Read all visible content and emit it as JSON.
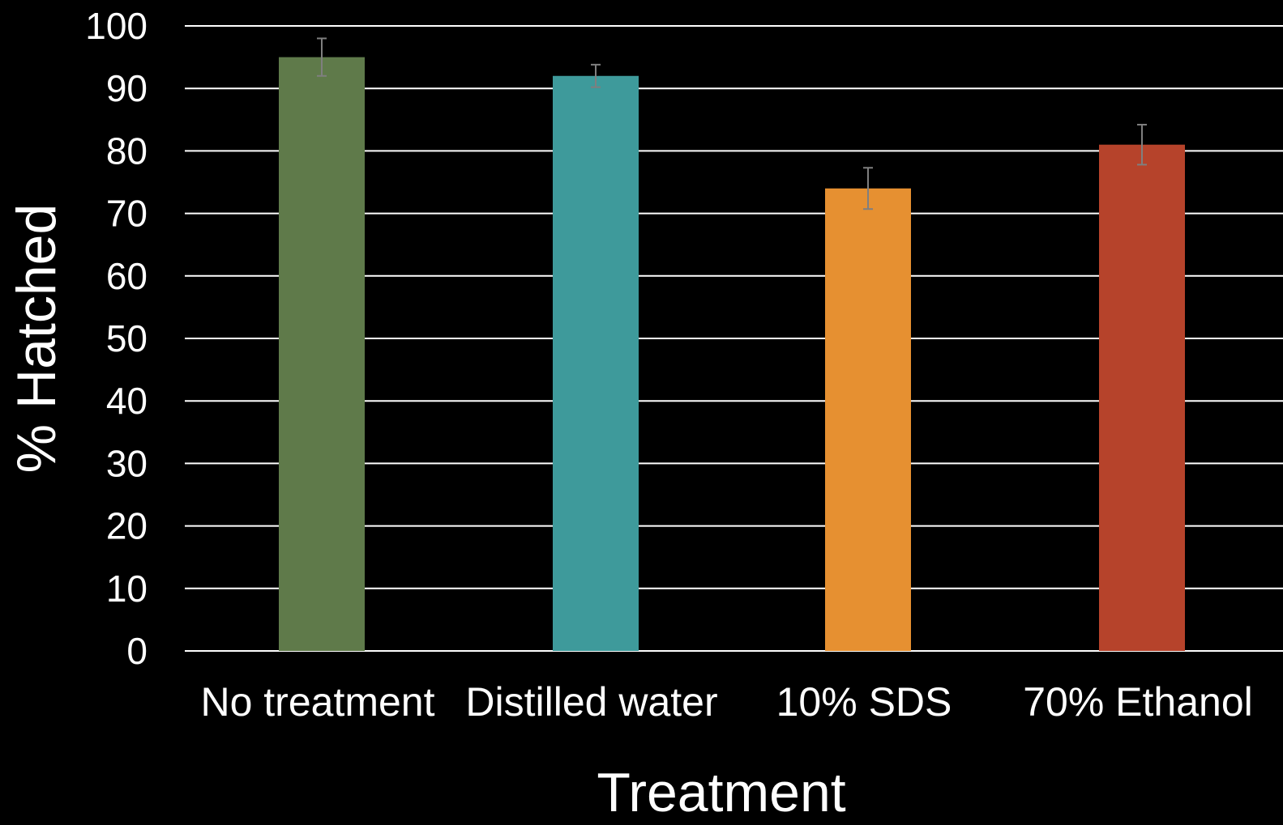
{
  "chart_data": {
    "type": "bar",
    "title": "",
    "xlabel": "Treatment",
    "ylabel": "% Hatched",
    "categories": [
      "No treatment",
      "Distilled water",
      "10% SDS",
      "70% Ethanol"
    ],
    "values": [
      95,
      92,
      74,
      81
    ],
    "error_bars": [
      3,
      1.8,
      3.3,
      3.2
    ],
    "colors": [
      "#5f7a4a",
      "#3e9a9b",
      "#e69031",
      "#b6432b"
    ],
    "ylim": [
      0,
      100
    ],
    "yticks": [
      0,
      10,
      20,
      30,
      40,
      50,
      60,
      70,
      80,
      90,
      100
    ],
    "grid": true,
    "legend": "none",
    "background": "#000000",
    "text_color": "#ffffff",
    "error_bar_color": "#7f7f7f"
  }
}
